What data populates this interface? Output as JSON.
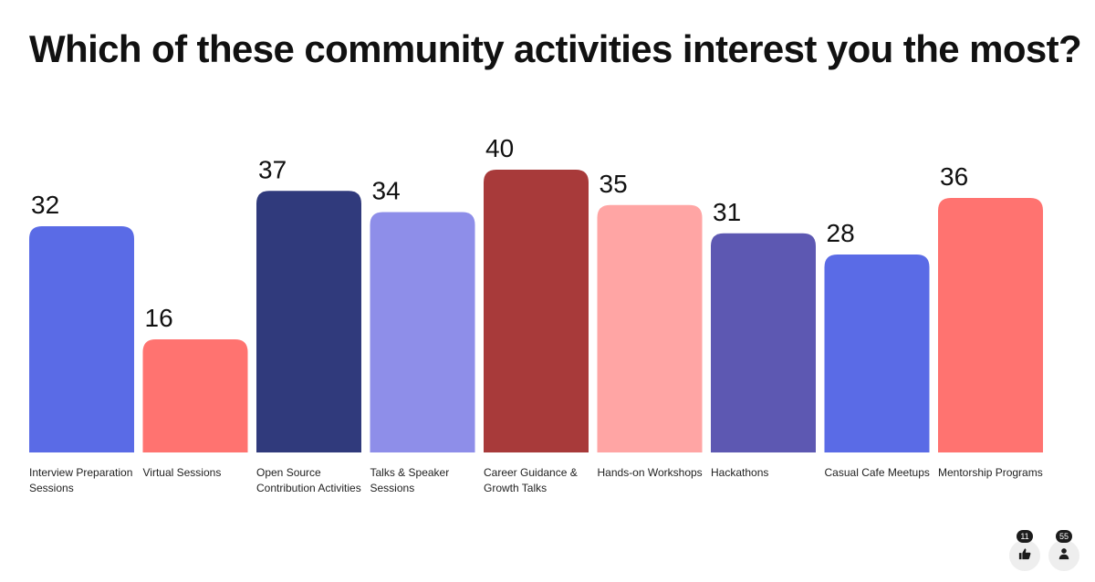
{
  "title": "Which of these community activities interest you the most?",
  "chart_data": {
    "type": "bar",
    "title": "Which of these community activities interest you the most?",
    "categories": [
      "Interview Preparation Sessions",
      "Virtual Sessions",
      "Open Source Contribution Activities",
      "Talks & Speaker Sessions",
      "Career Guidance & Growth Talks",
      "Hands-on Workshops",
      "Hackathons",
      "Casual Cafe Meetups",
      "Mentorship Programs"
    ],
    "values": [
      32,
      16,
      37,
      34,
      40,
      35,
      31,
      28,
      36
    ],
    "colors": [
      "#5a6be6",
      "#ff7370",
      "#303a7c",
      "#8e8ee9",
      "#a83a3a",
      "#ffa5a4",
      "#5d58b2",
      "#5a6be6",
      "#ff7370"
    ],
    "ylim": [
      0,
      40
    ],
    "grid": false,
    "legend": "none",
    "xlabel": "",
    "ylabel": ""
  },
  "reactions": {
    "likes_count": "11",
    "participants_count": "55",
    "like_icon": "thumbs-up-icon",
    "participants_icon": "person-icon"
  }
}
